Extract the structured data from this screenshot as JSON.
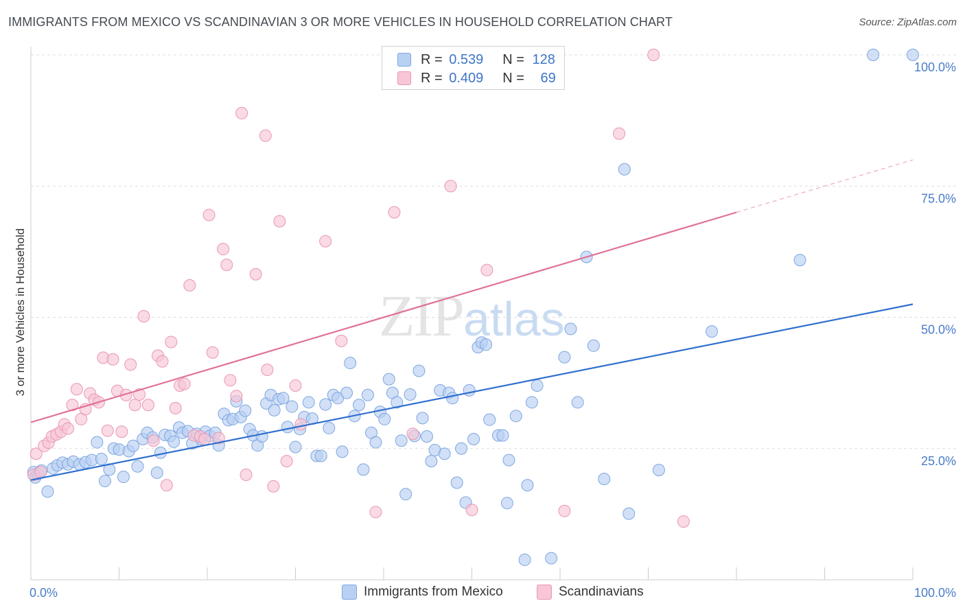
{
  "title": "IMMIGRANTS FROM MEXICO VS SCANDINAVIAN 3 OR MORE VEHICLES IN HOUSEHOLD CORRELATION CHART",
  "source": "Source: ZipAtlas.com",
  "watermark": {
    "zip": "ZIP",
    "atlas": "atlas"
  },
  "legend": {
    "rows": [
      {
        "r_label": "R =",
        "r_value": "0.539",
        "n_label": "N =",
        "n_value": "128"
      },
      {
        "r_label": "R =",
        "r_value": "0.409",
        "n_label": "N =",
        "n_value": "69"
      }
    ]
  },
  "colors": {
    "blue_fill": "#b8d0f2",
    "blue_stroke": "#7ea6e0",
    "blue_line": "#2f6fcf",
    "pink_fill": "#f8c6d6",
    "pink_stroke": "#ea96b2",
    "pink_line": "#e0709a",
    "grid": "#dddddd",
    "tick_text": "#4a7cc9"
  },
  "chart_data": {
    "type": "scatter",
    "title": "IMMIGRANTS FROM MEXICO VS SCANDINAVIAN 3 OR MORE VEHICLES IN HOUSEHOLD CORRELATION CHART",
    "xlabel": "",
    "ylabel": "3 or more Vehicles in Household",
    "xlim": [
      0,
      100
    ],
    "ylim": [
      0,
      100
    ],
    "x_tick_labels": [
      "0.0%",
      "100.0%"
    ],
    "y_ticks": [
      25,
      50,
      75,
      100
    ],
    "y_tick_labels": [
      "25.0%",
      "50.0%",
      "75.0%",
      "100.0%"
    ],
    "grid": true,
    "legend_position": "top-center",
    "series": [
      {
        "name": "Immigrants from Mexico",
        "r": 0.539,
        "n": 128,
        "trend": {
          "x0": 0,
          "y0": 19.0,
          "x1": 100,
          "y1": 52.5
        },
        "points": [
          [
            0.3,
            20.5
          ],
          [
            0.5,
            19.5
          ],
          [
            0.8,
            20.2
          ],
          [
            1.2,
            20.8
          ],
          [
            1.9,
            16.8
          ],
          [
            2.5,
            21.2
          ],
          [
            3.0,
            21.8
          ],
          [
            3.6,
            22.3
          ],
          [
            4.2,
            22.0
          ],
          [
            4.8,
            22.5
          ],
          [
            5.5,
            22.0
          ],
          [
            6.2,
            22.4
          ],
          [
            6.9,
            22.8
          ],
          [
            7.5,
            26.2
          ],
          [
            8.0,
            23.0
          ],
          [
            8.4,
            18.8
          ],
          [
            8.9,
            21.0
          ],
          [
            9.4,
            25.0
          ],
          [
            10.0,
            24.8
          ],
          [
            10.5,
            19.6
          ],
          [
            11.1,
            24.5
          ],
          [
            11.6,
            25.5
          ],
          [
            12.1,
            21.6
          ],
          [
            12.7,
            26.8
          ],
          [
            13.2,
            28.0
          ],
          [
            13.8,
            27.1
          ],
          [
            14.3,
            20.4
          ],
          [
            14.7,
            24.2
          ],
          [
            15.2,
            27.6
          ],
          [
            15.8,
            27.4
          ],
          [
            16.2,
            26.3
          ],
          [
            16.8,
            29.0
          ],
          [
            17.2,
            28.0
          ],
          [
            17.8,
            28.3
          ],
          [
            18.3,
            26.0
          ],
          [
            18.8,
            27.8
          ],
          [
            19.3,
            26.8
          ],
          [
            19.8,
            28.2
          ],
          [
            20.3,
            27.4
          ],
          [
            20.9,
            28.0
          ],
          [
            21.3,
            25.6
          ],
          [
            21.9,
            31.6
          ],
          [
            22.4,
            30.4
          ],
          [
            22.9,
            30.6
          ],
          [
            23.3,
            34.0
          ],
          [
            23.8,
            31.0
          ],
          [
            24.3,
            32.2
          ],
          [
            24.8,
            28.7
          ],
          [
            25.2,
            27.5
          ],
          [
            25.7,
            25.6
          ],
          [
            26.2,
            27.3
          ],
          [
            26.7,
            33.6
          ],
          [
            27.2,
            35.2
          ],
          [
            27.6,
            32.3
          ],
          [
            28.1,
            34.4
          ],
          [
            28.6,
            34.6
          ],
          [
            29.1,
            29.1
          ],
          [
            29.6,
            33.0
          ],
          [
            30.0,
            25.3
          ],
          [
            30.5,
            28.7
          ],
          [
            31.0,
            31.0
          ],
          [
            31.5,
            33.8
          ],
          [
            31.9,
            30.7
          ],
          [
            32.4,
            23.6
          ],
          [
            32.9,
            23.6
          ],
          [
            33.4,
            33.4
          ],
          [
            33.8,
            28.9
          ],
          [
            34.3,
            35.2
          ],
          [
            34.8,
            34.6
          ],
          [
            35.3,
            24.4
          ],
          [
            35.8,
            35.6
          ],
          [
            36.2,
            41.3
          ],
          [
            36.7,
            31.2
          ],
          [
            37.2,
            33.3
          ],
          [
            37.7,
            21.0
          ],
          [
            38.2,
            35.2
          ],
          [
            38.6,
            28.0
          ],
          [
            39.1,
            26.2
          ],
          [
            39.6,
            32.0
          ],
          [
            40.1,
            30.6
          ],
          [
            40.6,
            38.2
          ],
          [
            41.0,
            35.6
          ],
          [
            41.5,
            33.8
          ],
          [
            42.0,
            26.5
          ],
          [
            42.5,
            16.3
          ],
          [
            43.0,
            35.3
          ],
          [
            43.5,
            27.4
          ],
          [
            44.0,
            39.8
          ],
          [
            44.4,
            30.8
          ],
          [
            44.9,
            27.3
          ],
          [
            45.4,
            22.6
          ],
          [
            45.8,
            24.7
          ],
          [
            46.4,
            36.1
          ],
          [
            46.9,
            24.0
          ],
          [
            47.4,
            35.6
          ],
          [
            47.8,
            34.6
          ],
          [
            48.3,
            18.5
          ],
          [
            48.8,
            25.0
          ],
          [
            49.3,
            14.7
          ],
          [
            49.7,
            36.1
          ],
          [
            50.2,
            26.8
          ],
          [
            50.7,
            44.3
          ],
          [
            51.1,
            45.2
          ],
          [
            51.6,
            44.8
          ],
          [
            52.0,
            30.5
          ],
          [
            53.0,
            27.5
          ],
          [
            53.5,
            27.5
          ],
          [
            54.0,
            14.6
          ],
          [
            54.2,
            22.8
          ],
          [
            55.0,
            31.2
          ],
          [
            56.0,
            3.8
          ],
          [
            56.3,
            18.0
          ],
          [
            56.8,
            33.8
          ],
          [
            57.4,
            37.0
          ],
          [
            59.0,
            4.1
          ],
          [
            60.5,
            42.4
          ],
          [
            61.2,
            47.8
          ],
          [
            62.0,
            33.8
          ],
          [
            63.0,
            61.5
          ],
          [
            63.8,
            44.6
          ],
          [
            65.0,
            19.2
          ],
          [
            67.3,
            78.2
          ],
          [
            67.8,
            12.6
          ],
          [
            71.2,
            20.9
          ],
          [
            77.2,
            47.3
          ],
          [
            87.2,
            60.9
          ],
          [
            95.5,
            100.0
          ],
          [
            100.0,
            100.0
          ]
        ]
      },
      {
        "name": "Scandinavians",
        "r": 0.409,
        "n": 69,
        "trend": {
          "x0": 0,
          "y0": 30.0,
          "x1": 80,
          "y1": 70.0,
          "dash_to_x": 100,
          "dash_to_y": 80.0
        },
        "points": [
          [
            0.3,
            20.0
          ],
          [
            0.6,
            24.0
          ],
          [
            1.1,
            20.5
          ],
          [
            1.5,
            25.5
          ],
          [
            2.0,
            26.1
          ],
          [
            2.4,
            27.3
          ],
          [
            2.9,
            27.7
          ],
          [
            3.4,
            28.2
          ],
          [
            3.8,
            29.6
          ],
          [
            4.2,
            28.8
          ],
          [
            4.7,
            33.3
          ],
          [
            5.2,
            36.3
          ],
          [
            5.7,
            30.6
          ],
          [
            6.2,
            32.5
          ],
          [
            6.7,
            35.5
          ],
          [
            7.2,
            34.3
          ],
          [
            7.7,
            33.8
          ],
          [
            8.2,
            42.3
          ],
          [
            8.7,
            28.4
          ],
          [
            9.3,
            42.0
          ],
          [
            9.8,
            36.0
          ],
          [
            10.3,
            28.2
          ],
          [
            10.8,
            35.2
          ],
          [
            11.3,
            41.0
          ],
          [
            11.8,
            33.3
          ],
          [
            12.3,
            35.3
          ],
          [
            12.8,
            50.2
          ],
          [
            13.3,
            33.3
          ],
          [
            13.9,
            26.5
          ],
          [
            14.4,
            42.7
          ],
          [
            14.9,
            41.6
          ],
          [
            15.4,
            18.0
          ],
          [
            15.9,
            45.3
          ],
          [
            16.4,
            32.7
          ],
          [
            16.9,
            37.0
          ],
          [
            17.4,
            37.3
          ],
          [
            18.0,
            56.1
          ],
          [
            18.5,
            27.5
          ],
          [
            19.2,
            27.3
          ],
          [
            19.7,
            26.8
          ],
          [
            20.2,
            69.5
          ],
          [
            20.6,
            43.3
          ],
          [
            21.3,
            27.0
          ],
          [
            21.8,
            63.0
          ],
          [
            22.2,
            60.0
          ],
          [
            22.6,
            38.0
          ],
          [
            23.3,
            35.0
          ],
          [
            23.9,
            88.9
          ],
          [
            24.4,
            20.0
          ],
          [
            25.5,
            58.2
          ],
          [
            26.6,
            84.6
          ],
          [
            26.8,
            40.0
          ],
          [
            27.5,
            17.8
          ],
          [
            28.2,
            68.3
          ],
          [
            29.0,
            22.6
          ],
          [
            30.0,
            37.0
          ],
          [
            30.6,
            29.6
          ],
          [
            33.4,
            64.5
          ],
          [
            35.2,
            45.5
          ],
          [
            39.1,
            12.9
          ],
          [
            41.2,
            70.0
          ],
          [
            43.3,
            27.8
          ],
          [
            47.6,
            75.0
          ],
          [
            50.0,
            13.3
          ],
          [
            51.7,
            59.0
          ],
          [
            60.5,
            13.1
          ],
          [
            66.7,
            85.0
          ],
          [
            70.6,
            100.0
          ],
          [
            74.0,
            11.1
          ]
        ]
      }
    ]
  },
  "bottom_legend": [
    {
      "label": "Immigrants from Mexico"
    },
    {
      "label": "Scandinavians"
    }
  ]
}
